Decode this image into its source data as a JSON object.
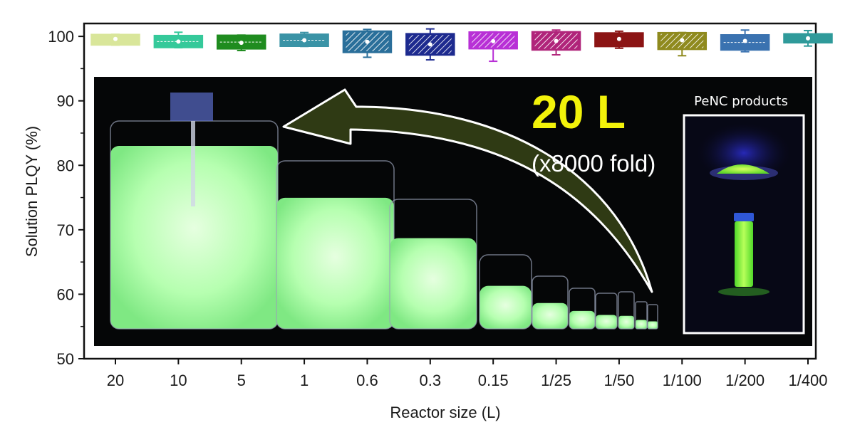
{
  "chart_data": {
    "type": "box",
    "xlabel": "Reactor size (L)",
    "ylabel": "Solution PLQY (%)",
    "ylim": [
      50,
      102
    ],
    "yticks": [
      50,
      60,
      70,
      80,
      90,
      100
    ],
    "categories": [
      "20",
      "10",
      "5",
      "1",
      "0.6",
      "0.3",
      "0.15",
      "1/25",
      "1/50",
      "1/100",
      "1/200",
      "1/400"
    ],
    "boxes": [
      {
        "q1": 99.2,
        "q3": 99.9,
        "median": 99.6,
        "mean": 99.6,
        "whisker_low": 99.2,
        "whisker_high": 99.9,
        "color": "#d9e69a",
        "pattern": "solid"
      },
      {
        "q1": 98.8,
        "q3": 99.6,
        "median": 99.2,
        "mean": 99.2,
        "whisker_low": 98.8,
        "whisker_high": 99.8,
        "color": "#35c99a",
        "pattern": "dashed"
      },
      {
        "q1": 98.6,
        "q3": 99.5,
        "median": 99.0,
        "mean": 99.0,
        "whisker_low": 98.5,
        "whisker_high": 99.5,
        "color": "#1f8c1f",
        "pattern": "dashed"
      },
      {
        "q1": 99.0,
        "q3": 99.8,
        "median": 99.4,
        "mean": 99.4,
        "whisker_low": 99.0,
        "whisker_high": 99.9,
        "color": "#3a93a6",
        "pattern": "dashed"
      },
      {
        "q1": 98.6,
        "q3": 100.0,
        "median": 99.4,
        "mean": 99.3,
        "whisker_low": 98.3,
        "whisker_high": 100.1,
        "color": "#2a6f9a",
        "pattern": "hatched"
      },
      {
        "q1": 98.2,
        "q3": 99.6,
        "median": 99.0,
        "mean": 98.9,
        "whisker_low": 97.9,
        "whisker_high": 99.9,
        "color": "#1d2a8f",
        "pattern": "hatched"
      },
      {
        "q1": 98.9,
        "q3": 100.0,
        "median": 99.5,
        "mean": 99.4,
        "whisker_low": 98.1,
        "whisker_high": 100.0,
        "color": "#b830d6",
        "pattern": "hatched"
      },
      {
        "q1": 98.7,
        "q3": 99.9,
        "median": 99.3,
        "mean": 99.3,
        "whisker_low": 98.4,
        "whisker_high": 100.0,
        "color": "#b0247a",
        "pattern": "hatched"
      },
      {
        "q1": 99.1,
        "q3": 100.0,
        "median": 99.6,
        "mean": 99.6,
        "whisker_low": 99.0,
        "whisker_high": 100.1,
        "color": "#8b1414",
        "pattern": "solid"
      },
      {
        "q1": 98.8,
        "q3": 99.9,
        "median": 99.4,
        "mean": 99.4,
        "whisker_low": 98.4,
        "whisker_high": 99.9,
        "color": "#8f8a1e",
        "pattern": "hatched"
      },
      {
        "q1": 98.7,
        "q3": 99.7,
        "median": 99.3,
        "mean": 99.3,
        "whisker_low": 98.6,
        "whisker_high": 100.0,
        "color": "#3a72b0",
        "pattern": "dashed"
      },
      {
        "q1": 99.4,
        "q3": 100.0,
        "median": 99.7,
        "mean": 99.7,
        "whisker_low": 99.2,
        "whisker_high": 100.2,
        "color": "#2f9a9a",
        "pattern": "solid"
      }
    ],
    "annotations": {
      "volume": "20 L",
      "fold": "(x8000 fold)",
      "inset_title": "PeNC products"
    },
    "beaker_levels": [
      0.88,
      0.78,
      0.7,
      0.58,
      0.49,
      0.44,
      0.39,
      0.35,
      0.33,
      0.31
    ],
    "grid": false,
    "legend": "none"
  },
  "colors": {
    "glow": "#bfffc0",
    "glow_core": "#e4ffdc",
    "photo_bg": "#050607",
    "annotation_yellow": "#f2f20a"
  }
}
